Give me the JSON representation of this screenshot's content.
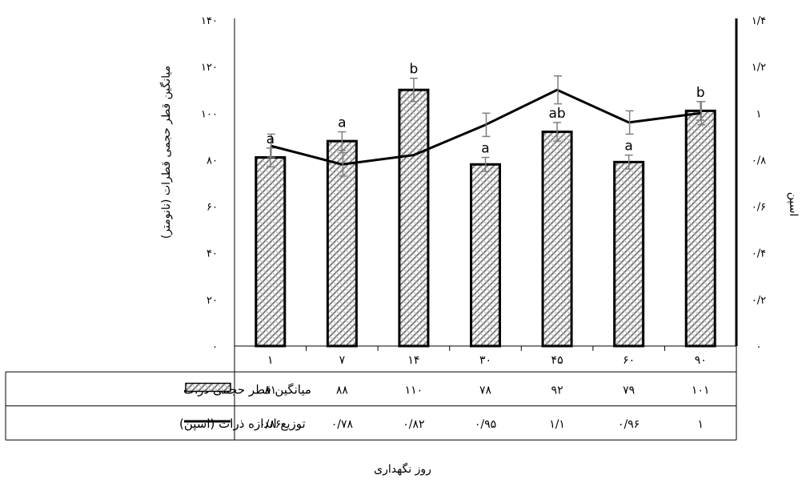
{
  "chart_data": {
    "type": "bar",
    "categories": [
      "۱",
      "۷",
      "۱۴",
      "۳۰",
      "۴۵",
      "۶۰",
      "۹۰"
    ],
    "xlabel": "روز نگهداری",
    "ylabel_left": "میانگین قطر حجمی قطرات (نانومتر)",
    "ylabel_right": "اسپن",
    "ylim_left": [
      0,
      140
    ],
    "ylim_right": [
      0,
      1.4
    ],
    "yticks_left": [
      "۰",
      "۲۰",
      "۴۰",
      "۶۰",
      "۸۰",
      "۱۰۰",
      "۱۲۰",
      "۱۴۰"
    ],
    "yticks_right": [
      "۰",
      "۰/۲",
      "۰/۴",
      "۰/۶",
      "۰/۸",
      "۱",
      "۱/۲",
      "۱/۴"
    ],
    "series": [
      {
        "name": "میانگین قطر حجمی ذرات",
        "kind": "bar",
        "axis": "left",
        "values": [
          81,
          88,
          110,
          78,
          92,
          79,
          101
        ],
        "errors": [
          4,
          4,
          5,
          3,
          4,
          3,
          4
        ],
        "labels": [
          "a",
          "a",
          "b",
          "a",
          "ab",
          "a",
          "b"
        ],
        "table_values": [
          "۸۱",
          "۸۸",
          "۱۱۰",
          "۷۸",
          "۹۲",
          "۷۹",
          "۱۰۱"
        ]
      },
      {
        "name": "توزیع اندازه ذرات (اسپن)",
        "kind": "line",
        "axis": "right",
        "values": [
          0.86,
          0.78,
          0.82,
          0.95,
          1.1,
          0.96,
          1.0
        ],
        "errors": [
          0.05,
          0.05,
          0.0,
          0.05,
          0.06,
          0.05,
          0.05
        ],
        "table_values": [
          "۰/۸۶",
          "۰/۷۸",
          "۰/۸۲",
          "۰/۹۵",
          "۱/۱",
          "۰/۹۶",
          "۱"
        ]
      }
    ],
    "colors": {
      "bar_fill": "#9a9a9a",
      "bar_stroke": "#000000",
      "line": "#000000",
      "error": "#7f7f7f"
    }
  }
}
